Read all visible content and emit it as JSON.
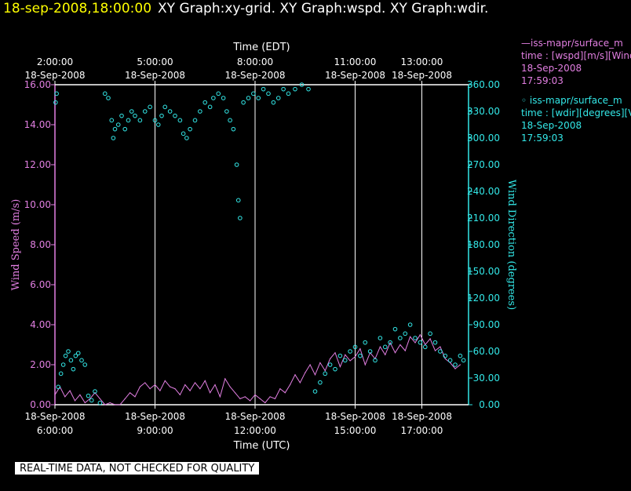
{
  "header": {
    "datetime": "18-sep-2008,18:00:00",
    "titles": "XY Graph:xy-grid.  XY Graph:wspd.  XY Graph:wdir."
  },
  "footer_text": "REAL-TIME DATA, NOT CHECKED FOR QUALITY",
  "legend": {
    "wspd": [
      "—iss-mapr/surface_m",
      "time : [wspd][m/s][Wind",
      "18-Sep-2008",
      "17:59:03"
    ],
    "wdir": [
      "◦  iss-mapr/surface_m",
      "time : [wdir][degrees][V",
      "18-Sep-2008",
      "17:59:03"
    ]
  },
  "colors": {
    "wspd": "#e27fe2",
    "wdir": "#33e8e8",
    "grid": "#ffffff",
    "text": "#ffffff"
  },
  "chart_data": {
    "type": "line",
    "title": "",
    "xlabel_top": "Time (EDT)",
    "xlabel_bottom": "Time (UTC)",
    "ylabel_left": "Wind Speed (m/s)",
    "ylabel_right": "Wind Direction (degrees)",
    "x_unit": "hours UTC on 18-Sep-2008",
    "xlim": [
      6.0,
      18.4
    ],
    "ylim_left": [
      0,
      16
    ],
    "ylim_right": [
      0,
      360
    ],
    "grid": true,
    "left_ticks": [
      "0.00",
      "2.00",
      "4.00",
      "6.00",
      "8.00",
      "10.00",
      "12.00",
      "14.00",
      "16.00"
    ],
    "right_ticks": [
      "0.00",
      "30.00",
      "60.00",
      "90.00",
      "120.00",
      "150.00",
      "180.00",
      "210.00",
      "240.00",
      "270.00",
      "300.00",
      "330.00",
      "360.00"
    ],
    "bottom_ticks": [
      {
        "x": 6,
        "date": "18-Sep-2008",
        "time": "6:00:00"
      },
      {
        "x": 9,
        "date": "18-Sep-2008",
        "time": "9:00:00"
      },
      {
        "x": 12,
        "date": "18-Sep-2008",
        "time": "12:00:00"
      },
      {
        "x": 15,
        "date": "18-Sep-2008",
        "time": "15:00:00"
      },
      {
        "x": 17,
        "date": "18-Sep-2008",
        "time": "17:00:00"
      }
    ],
    "top_ticks": [
      {
        "x": 6,
        "date": "18-Sep-2008",
        "time": "2:00:00"
      },
      {
        "x": 9,
        "date": "18-Sep-2008",
        "time": "5:00:00"
      },
      {
        "x": 12,
        "date": "18-Sep-2008",
        "time": "8:00:00"
      },
      {
        "x": 15,
        "date": "18-Sep-2008",
        "time": "11:00:00"
      },
      {
        "x": 17,
        "date": "18-Sep-2008",
        "time": "13:00:00"
      }
    ],
    "series": [
      {
        "name": "iss-mapr/surface_m time : [wspd][m/s][Wind",
        "axis": "left",
        "style": "line",
        "color": "#e27fe2",
        "points": [
          [
            6.0,
            0.5
          ],
          [
            6.15,
            0.9
          ],
          [
            6.3,
            0.4
          ],
          [
            6.45,
            0.7
          ],
          [
            6.6,
            0.2
          ],
          [
            6.75,
            0.5
          ],
          [
            6.9,
            0.1
          ],
          [
            7.05,
            0.3
          ],
          [
            7.2,
            0.6
          ],
          [
            7.35,
            0.3
          ],
          [
            7.5,
            0.0
          ],
          [
            7.65,
            0.1
          ],
          [
            7.8,
            0.0
          ],
          [
            7.95,
            0.0
          ],
          [
            8.1,
            0.3
          ],
          [
            8.25,
            0.6
          ],
          [
            8.4,
            0.4
          ],
          [
            8.55,
            0.9
          ],
          [
            8.7,
            1.1
          ],
          [
            8.85,
            0.8
          ],
          [
            9.0,
            1.0
          ],
          [
            9.15,
            0.7
          ],
          [
            9.3,
            1.2
          ],
          [
            9.45,
            0.9
          ],
          [
            9.6,
            0.8
          ],
          [
            9.75,
            0.5
          ],
          [
            9.9,
            1.0
          ],
          [
            10.05,
            0.7
          ],
          [
            10.2,
            1.1
          ],
          [
            10.35,
            0.8
          ],
          [
            10.5,
            1.2
          ],
          [
            10.65,
            0.6
          ],
          [
            10.8,
            1.0
          ],
          [
            10.95,
            0.4
          ],
          [
            11.1,
            1.3
          ],
          [
            11.25,
            0.9
          ],
          [
            11.4,
            0.6
          ],
          [
            11.55,
            0.3
          ],
          [
            11.7,
            0.4
          ],
          [
            11.85,
            0.2
          ],
          [
            12.0,
            0.5
          ],
          [
            12.15,
            0.3
          ],
          [
            12.3,
            0.1
          ],
          [
            12.45,
            0.4
          ],
          [
            12.6,
            0.3
          ],
          [
            12.75,
            0.8
          ],
          [
            12.9,
            0.6
          ],
          [
            13.05,
            1.0
          ],
          [
            13.2,
            1.5
          ],
          [
            13.35,
            1.1
          ],
          [
            13.5,
            1.6
          ],
          [
            13.65,
            2.0
          ],
          [
            13.8,
            1.5
          ],
          [
            13.95,
            2.1
          ],
          [
            14.1,
            1.7
          ],
          [
            14.25,
            2.3
          ],
          [
            14.4,
            2.6
          ],
          [
            14.55,
            1.9
          ],
          [
            14.7,
            2.5
          ],
          [
            14.85,
            2.2
          ],
          [
            15.0,
            2.4
          ],
          [
            15.15,
            2.8
          ],
          [
            15.3,
            2.0
          ],
          [
            15.45,
            2.6
          ],
          [
            15.6,
            2.3
          ],
          [
            15.75,
            2.9
          ],
          [
            15.9,
            2.5
          ],
          [
            16.05,
            3.1
          ],
          [
            16.2,
            2.6
          ],
          [
            16.35,
            3.0
          ],
          [
            16.5,
            2.7
          ],
          [
            16.65,
            3.4
          ],
          [
            16.8,
            3.1
          ],
          [
            16.95,
            3.5
          ],
          [
            17.1,
            3.0
          ],
          [
            17.25,
            3.3
          ],
          [
            17.4,
            2.7
          ],
          [
            17.55,
            2.9
          ],
          [
            17.7,
            2.3
          ],
          [
            17.85,
            2.1
          ],
          [
            18.0,
            1.8
          ],
          [
            18.15,
            2.0
          ]
        ]
      },
      {
        "name": "iss-mapr/surface_m time : [wdir][degrees][V",
        "axis": "right",
        "style": "scatter",
        "color": "#33e8e8",
        "points": [
          [
            6.02,
            340
          ],
          [
            6.05,
            350
          ],
          [
            6.1,
            20
          ],
          [
            6.18,
            35
          ],
          [
            6.25,
            45
          ],
          [
            6.32,
            55
          ],
          [
            6.4,
            60
          ],
          [
            6.48,
            50
          ],
          [
            6.55,
            40
          ],
          [
            6.62,
            55
          ],
          [
            6.7,
            58
          ],
          [
            6.8,
            50
          ],
          [
            6.9,
            45
          ],
          [
            7.0,
            10
          ],
          [
            7.1,
            5
          ],
          [
            7.2,
            15
          ],
          [
            7.35,
            2
          ],
          [
            7.5,
            350
          ],
          [
            7.6,
            345
          ],
          [
            7.7,
            320
          ],
          [
            7.75,
            300
          ],
          [
            7.8,
            310
          ],
          [
            7.9,
            315
          ],
          [
            8.0,
            325
          ],
          [
            8.1,
            310
          ],
          [
            8.2,
            320
          ],
          [
            8.3,
            330
          ],
          [
            8.4,
            325
          ],
          [
            8.55,
            320
          ],
          [
            8.7,
            330
          ],
          [
            8.85,
            335
          ],
          [
            9.0,
            320
          ],
          [
            9.1,
            315
          ],
          [
            9.2,
            325
          ],
          [
            9.3,
            335
          ],
          [
            9.45,
            330
          ],
          [
            9.6,
            325
          ],
          [
            9.75,
            320
          ],
          [
            9.85,
            305
          ],
          [
            9.95,
            300
          ],
          [
            10.05,
            310
          ],
          [
            10.2,
            320
          ],
          [
            10.35,
            330
          ],
          [
            10.5,
            340
          ],
          [
            10.65,
            335
          ],
          [
            10.75,
            345
          ],
          [
            10.9,
            350
          ],
          [
            11.05,
            345
          ],
          [
            11.15,
            330
          ],
          [
            11.25,
            320
          ],
          [
            11.35,
            310
          ],
          [
            11.45,
            270
          ],
          [
            11.5,
            230
          ],
          [
            11.55,
            210
          ],
          [
            11.65,
            340
          ],
          [
            11.8,
            345
          ],
          [
            11.95,
            350
          ],
          [
            12.1,
            345
          ],
          [
            12.25,
            355
          ],
          [
            12.4,
            350
          ],
          [
            12.55,
            340
          ],
          [
            12.7,
            345
          ],
          [
            12.85,
            355
          ],
          [
            13.0,
            350
          ],
          [
            13.2,
            355
          ],
          [
            13.4,
            360
          ],
          [
            13.6,
            355
          ],
          [
            13.8,
            15
          ],
          [
            13.95,
            25
          ],
          [
            14.1,
            35
          ],
          [
            14.25,
            45
          ],
          [
            14.4,
            40
          ],
          [
            14.55,
            55
          ],
          [
            14.7,
            50
          ],
          [
            14.85,
            60
          ],
          [
            15.0,
            65
          ],
          [
            15.15,
            55
          ],
          [
            15.3,
            70
          ],
          [
            15.45,
            60
          ],
          [
            15.6,
            50
          ],
          [
            15.75,
            75
          ],
          [
            15.9,
            65
          ],
          [
            16.05,
            70
          ],
          [
            16.2,
            85
          ],
          [
            16.35,
            75
          ],
          [
            16.5,
            80
          ],
          [
            16.65,
            90
          ],
          [
            16.8,
            75
          ],
          [
            16.95,
            70
          ],
          [
            17.1,
            65
          ],
          [
            17.25,
            80
          ],
          [
            17.4,
            70
          ],
          [
            17.55,
            60
          ],
          [
            17.7,
            55
          ],
          [
            17.85,
            50
          ],
          [
            18.0,
            45
          ],
          [
            18.15,
            55
          ],
          [
            18.25,
            50
          ]
        ]
      }
    ]
  }
}
